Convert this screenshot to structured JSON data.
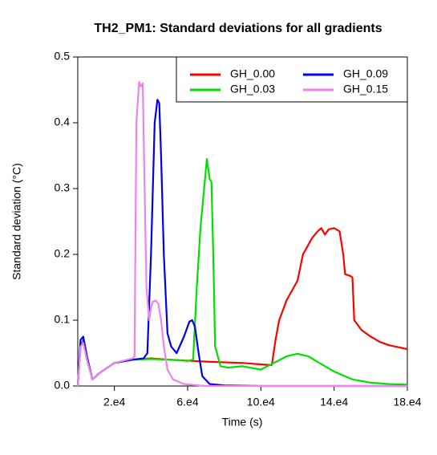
{
  "chart_data": {
    "type": "line",
    "title": "TH2_PM1: Standard deviations for all gradients",
    "x_label": "Time (s)",
    "y_label": "Standard deviation (°C)",
    "xlim": [
      0,
      180000
    ],
    "ylim": [
      0,
      0.5
    ],
    "xticks": [
      {
        "value": 20000,
        "label": "2.e4"
      },
      {
        "value": 60000,
        "label": "6.e4"
      },
      {
        "value": 100000,
        "label": "10.e4"
      },
      {
        "value": 140000,
        "label": "14.e4"
      },
      {
        "value": 180000,
        "label": "18.e4"
      }
    ],
    "yticks": [
      {
        "value": 0,
        "label": "0.0"
      },
      0.1,
      0.2,
      0.3,
      0.4,
      0.5
    ],
    "grid": false,
    "legend": "topright",
    "series": [
      {
        "name": "GH_0.00",
        "color": "#ff0000",
        "x": [
          0,
          1500,
          3000,
          5000,
          8000,
          12000,
          20000,
          30000,
          40000,
          50000,
          70000,
          90000,
          104000,
          106000,
          108000,
          110000,
          114000,
          118000,
          120000,
          123000,
          128000,
          131000,
          133000,
          135000,
          137000,
          140000,
          143000,
          145000,
          146000,
          149000,
          150000,
          151000,
          155000,
          160000,
          165000,
          170000,
          180000
        ],
        "values": [
          0,
          0.06,
          0.07,
          0.04,
          0.01,
          0.02,
          0.035,
          0.04,
          0.042,
          0.04,
          0.037,
          0.035,
          0.032,
          0.032,
          0.07,
          0.1,
          0.13,
          0.15,
          0.16,
          0.2,
          0.225,
          0.235,
          0.24,
          0.23,
          0.238,
          0.24,
          0.235,
          0.2,
          0.17,
          0.167,
          0.165,
          0.1,
          0.085,
          0.075,
          0.067,
          0.062,
          0.056
        ]
      },
      {
        "name": "GH_0.03",
        "color": "#00e000",
        "x": [
          0,
          1500,
          3000,
          5000,
          8000,
          12000,
          20000,
          30000,
          40000,
          50000,
          60000,
          63000,
          65000,
          67000,
          69000,
          70500,
          72000,
          73000,
          74000,
          75000,
          78000,
          82000,
          90000,
          100000,
          107000,
          114000,
          120000,
          126000,
          132000,
          140000,
          150000,
          160000,
          170000,
          180000
        ],
        "values": [
          0,
          0.06,
          0.068,
          0.04,
          0.01,
          0.02,
          0.035,
          0.04,
          0.041,
          0.04,
          0.038,
          0.04,
          0.15,
          0.24,
          0.3,
          0.345,
          0.315,
          0.31,
          0.2,
          0.06,
          0.03,
          0.028,
          0.03,
          0.025,
          0.035,
          0.045,
          0.049,
          0.045,
          0.035,
          0.022,
          0.01,
          0.005,
          0.003,
          0.002
        ]
      },
      {
        "name": "GH_0.09",
        "color": "#0000ee",
        "x": [
          0,
          1500,
          3000,
          5000,
          8000,
          12000,
          20000,
          30000,
          36000,
          38000,
          40000,
          42000,
          43500,
          44500,
          45500,
          47000,
          49000,
          51000,
          54000,
          58000,
          61000,
          62500,
          64000,
          66000,
          68000,
          72000,
          80000,
          100000,
          180000
        ],
        "values": [
          0,
          0.07,
          0.075,
          0.045,
          0.01,
          0.02,
          0.035,
          0.04,
          0.042,
          0.05,
          0.2,
          0.4,
          0.435,
          0.43,
          0.35,
          0.2,
          0.08,
          0.06,
          0.05,
          0.075,
          0.098,
          0.1,
          0.09,
          0.05,
          0.015,
          0.003,
          0.001,
          0,
          0
        ]
      },
      {
        "name": "GH_0.15",
        "color": "#ee82ee",
        "x": [
          0,
          1500,
          3000,
          5000,
          8000,
          12000,
          20000,
          30000,
          31000,
          32000,
          33500,
          34500,
          35500,
          36500,
          37500,
          39000,
          40000,
          41000,
          42500,
          44000,
          45500,
          47000,
          49000,
          52000,
          58000,
          70000,
          180000
        ],
        "values": [
          0,
          0.06,
          0.065,
          0.04,
          0.01,
          0.02,
          0.035,
          0.042,
          0.045,
          0.4,
          0.462,
          0.455,
          0.46,
          0.3,
          0.15,
          0.1,
          0.12,
          0.128,
          0.13,
          0.125,
          0.1,
          0.06,
          0.025,
          0.01,
          0.003,
          0,
          0
        ]
      }
    ]
  }
}
